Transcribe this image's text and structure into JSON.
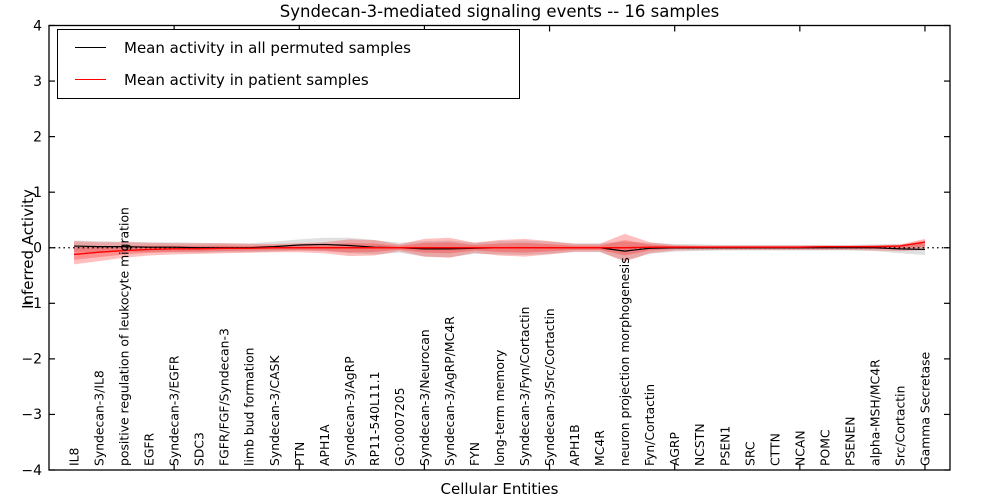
{
  "chart_data": {
    "type": "line",
    "title": "Syndecan-3-mediated signaling events -- 16 samples",
    "xlabel": "Cellular Entities",
    "ylabel": "Inferred Activity",
    "ylim": [
      -4,
      4
    ],
    "xlim": [
      0,
      36
    ],
    "yticks": [
      4,
      3,
      2,
      1,
      0,
      -1,
      -2,
      -3,
      -4
    ],
    "xticks": [
      5,
      10,
      15,
      20,
      25,
      30,
      35
    ],
    "grid": false,
    "legend_position": "upper left",
    "zero_line": {
      "y": 0,
      "style": "dotted",
      "color": "#000000"
    },
    "categories": [
      "IL8",
      "Syndecan-3/IL8",
      "positive regulation of leukocyte migration",
      "EGFR",
      "Syndecan-3/EGFR",
      "SDC3",
      "FGFR/FGF/Syndecan-3",
      "limb bud formation",
      "Syndecan-3/CASK",
      "PTN",
      "APH1A",
      "Syndecan-3/AgRP",
      "RP11-540L11.1",
      "GO:0007205",
      "Syndecan-3/Neurocan",
      "Syndecan-3/AgRP/MC4R",
      "FYN",
      "long-term memory",
      "Syndecan-3/Fyn/Cortactin",
      "Syndecan-3/Src/Cortactin",
      "APH1B",
      "MC4R",
      "neuron projection morphogenesis",
      "Fyn/Cortactin",
      "AGRP",
      "NCSTN",
      "PSEN1",
      "SRC",
      "CTTN",
      "NCAN",
      "POMC",
      "PSENEN",
      "alpha-MSH/MC4R",
      "Src/Cortactin",
      "Gamma Secretase"
    ],
    "series": [
      {
        "name": "Mean activity in all permuted samples",
        "color": "#000000",
        "band_color": "rgba(0,0,0,0.12)",
        "values": [
          0.03,
          0.02,
          0.02,
          0.01,
          0.01,
          0.0,
          0.0,
          0.0,
          0.02,
          0.05,
          0.06,
          0.04,
          0.01,
          0.0,
          -0.02,
          -0.02,
          -0.01,
          0.0,
          0.0,
          0.0,
          0.0,
          0.0,
          -0.06,
          -0.01,
          0.0,
          0.0,
          0.0,
          0.0,
          0.0,
          0.0,
          0.0,
          0.0,
          0.0,
          -0.02,
          -0.03
        ],
        "band_half_width": [
          0.1,
          0.1,
          0.09,
          0.09,
          0.09,
          0.09,
          0.08,
          0.08,
          0.09,
          0.1,
          0.12,
          0.14,
          0.13,
          0.09,
          0.14,
          0.15,
          0.1,
          0.12,
          0.13,
          0.11,
          0.08,
          0.08,
          0.17,
          0.1,
          0.07,
          0.06,
          0.05,
          0.05,
          0.05,
          0.05,
          0.05,
          0.05,
          0.06,
          0.08,
          0.1
        ]
      },
      {
        "name": "Mean activity in patient samples",
        "color": "#ff0000",
        "band_color": "rgba(255,0,0,0.25)",
        "values": [
          -0.12,
          -0.08,
          -0.05,
          -0.03,
          -0.02,
          -0.02,
          -0.01,
          -0.01,
          0.0,
          0.0,
          0.0,
          0.0,
          0.0,
          0.0,
          0.0,
          0.0,
          0.0,
          0.0,
          0.0,
          0.0,
          0.0,
          0.0,
          0.0,
          0.01,
          0.01,
          0.01,
          0.01,
          0.01,
          0.01,
          0.01,
          0.02,
          0.02,
          0.02,
          0.03,
          0.1
        ],
        "band_upper": [
          0.12,
          0.1,
          0.1,
          0.09,
          0.08,
          0.08,
          0.08,
          0.07,
          0.07,
          0.08,
          0.1,
          0.15,
          0.14,
          0.06,
          0.16,
          0.18,
          0.09,
          0.14,
          0.16,
          0.12,
          0.07,
          0.07,
          0.25,
          0.1,
          0.05,
          0.04,
          0.04,
          0.04,
          0.04,
          0.04,
          0.04,
          0.04,
          0.05,
          0.06,
          0.16
        ],
        "band_lower": [
          -0.3,
          -0.24,
          -0.18,
          -0.14,
          -0.12,
          -0.11,
          -0.1,
          -0.09,
          -0.08,
          -0.08,
          -0.1,
          -0.15,
          -0.14,
          -0.06,
          -0.16,
          -0.18,
          -0.09,
          -0.14,
          -0.16,
          -0.12,
          -0.07,
          -0.07,
          -0.25,
          -0.1,
          -0.05,
          -0.04,
          -0.04,
          -0.04,
          -0.04,
          -0.04,
          -0.04,
          -0.04,
          -0.05,
          -0.06,
          -0.04
        ]
      }
    ]
  }
}
